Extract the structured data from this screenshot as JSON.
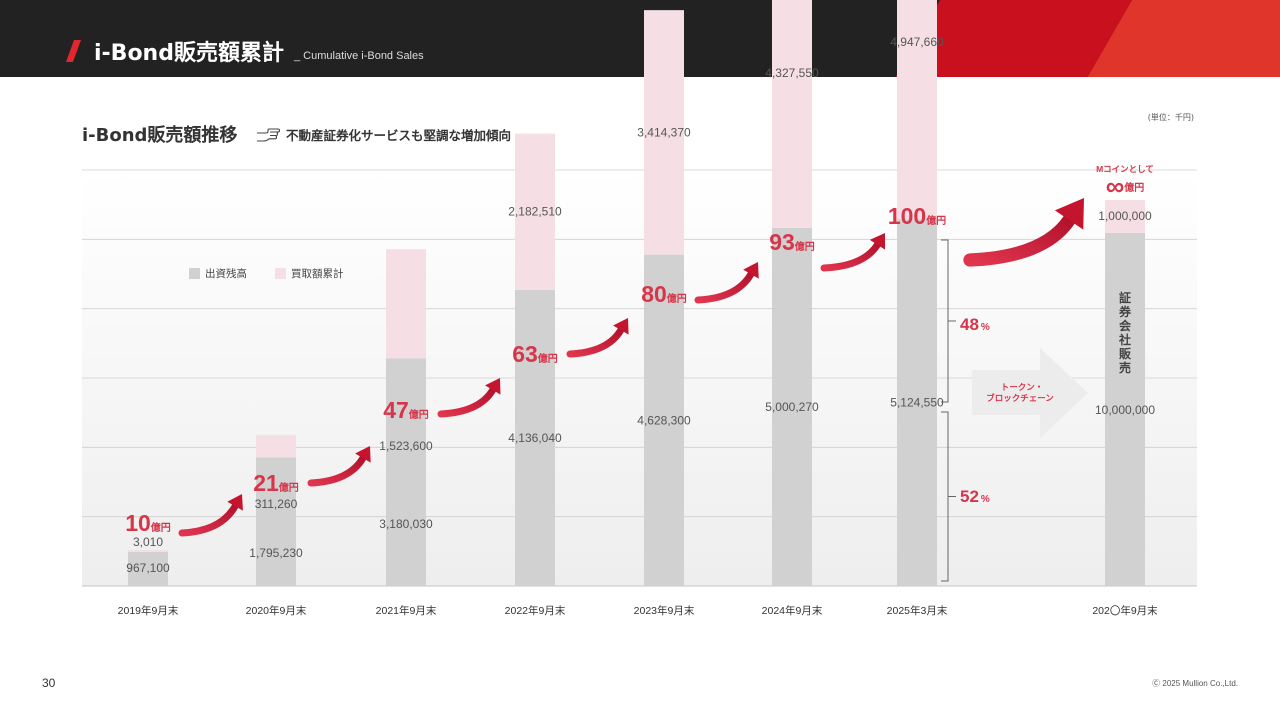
{
  "header": {
    "title": "i-Bond販売額累計",
    "subtitle": "_ Cumulative i-Bond Sales"
  },
  "section": {
    "title": "i-Bond販売額推移",
    "note": "不動産証券化サービスも堅調な増加傾向",
    "note_icon": "pointing-hand-icon",
    "unit": "(単位：千円)"
  },
  "footer": {
    "page_number": "30",
    "copyright": "Ⓒ 2025 Mullion Co.,Ltd."
  },
  "colors": {
    "header_bg": "#222222",
    "accent_red": "#e0262e",
    "total_label_red": "#d7354a",
    "series_capital": "#d1d1d1",
    "series_buyback": "#f6dfe4"
  },
  "chart_data": {
    "type": "bar",
    "stacked": true,
    "categories": [
      "2019年9月末",
      "2020年9月末",
      "2021年9月末",
      "2022年9月末",
      "2023年9月末",
      "2024年9月末",
      "2025年3月末",
      "202〇年9月末"
    ],
    "series": [
      {
        "name": "出資残高",
        "values": [
          967100,
          1795230,
          3180030,
          4136040,
          4628300,
          5000270,
          5124550,
          10000000
        ],
        "labels": [
          "967,100",
          "1,795,230",
          "3,180,030",
          "4,136,040",
          "4,628,300",
          "5,000,270",
          "5,124,550",
          "10,000,000"
        ]
      },
      {
        "name": "買取額累計",
        "values": [
          3010,
          311260,
          1523600,
          2182510,
          3414370,
          4327550,
          4947660,
          1000000
        ],
        "labels": [
          "3,010",
          "311,260",
          "1,523,600",
          "2,182,510",
          "3,414,370",
          "4,327,550",
          "4,947,660",
          "1,000,000"
        ]
      }
    ],
    "totals": [
      {
        "num": "10",
        "unit": "億円"
      },
      {
        "num": "21",
        "unit": "億円"
      },
      {
        "num": "47",
        "unit": "億円"
      },
      {
        "num": "63",
        "unit": "億円"
      },
      {
        "num": "80",
        "unit": "億円"
      },
      {
        "num": "93",
        "unit": "億円"
      },
      {
        "num": "100",
        "unit": "億円"
      }
    ],
    "future_total": {
      "caption": "Mコインとして",
      "num": "∞",
      "unit": "億円"
    },
    "future_bar_vertical_label": "証券会社販売",
    "ratio_labels": [
      {
        "num": "48",
        "unit": "%"
      },
      {
        "num": "52",
        "unit": "%"
      }
    ],
    "transition_arrow": {
      "line1": "トークン・",
      "line2": "ブロックチェーン"
    },
    "legend_position": "top-left",
    "grid": true
  }
}
